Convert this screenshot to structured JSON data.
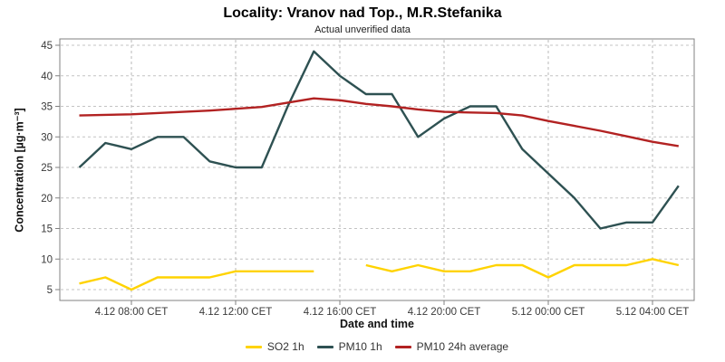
{
  "title": "Locality: Vranov nad Top., M.R.Stefanika",
  "subtitle": "Actual unverified data",
  "chart_data": {
    "type": "line",
    "title": "Locality: Vranov nad Top., M.R.Stefanika",
    "subtitle": "Actual unverified data",
    "xlabel": "Date and time",
    "ylabel": "Concentration [µg·m⁻³]",
    "ylim": [
      3,
      46
    ],
    "yticks": [
      5,
      10,
      15,
      20,
      25,
      30,
      35,
      40,
      45
    ],
    "grid": true,
    "legend_position": "bottom",
    "categories": [
      "4.12 06:00",
      "4.12 07:00",
      "4.12 08:00",
      "4.12 09:00",
      "4.12 10:00",
      "4.12 11:00",
      "4.12 12:00",
      "4.12 13:00",
      "4.12 14:00",
      "4.12 15:00",
      "4.12 16:00",
      "4.12 17:00",
      "4.12 18:00",
      "4.12 19:00",
      "4.12 20:00",
      "4.12 21:00",
      "4.12 22:00",
      "4.12 23:00",
      "5.12 00:00",
      "5.12 01:00",
      "5.12 02:00",
      "5.12 03:00",
      "5.12 04:00",
      "5.12 05:00"
    ],
    "xticks": [
      {
        "index": 2,
        "label": "4.12 08:00 CET"
      },
      {
        "index": 6,
        "label": "4.12 12:00 CET"
      },
      {
        "index": 10,
        "label": "4.12 16:00 CET"
      },
      {
        "index": 14,
        "label": "4.12 20:00 CET"
      },
      {
        "index": 18,
        "label": "5.12 00:00 CET"
      },
      {
        "index": 22,
        "label": "5.12 04:00 CET"
      }
    ],
    "series": [
      {
        "name": "SO2 1h",
        "color": "#FFD300",
        "values": [
          6,
          7,
          5,
          7,
          7,
          7,
          8,
          8,
          8,
          8,
          null,
          9,
          8,
          9,
          8,
          8,
          9,
          9,
          7,
          9,
          9,
          9,
          10,
          9
        ]
      },
      {
        "name": "PM10 1h",
        "color": "#2E5152",
        "values": [
          25,
          29,
          28,
          30,
          30,
          26,
          25,
          25,
          35,
          44,
          40,
          37,
          37,
          30,
          33,
          35,
          35,
          28,
          24,
          20,
          15,
          16,
          16,
          22
        ]
      },
      {
        "name": "PM10 24h average",
        "color": "#B22222",
        "values": [
          33.5,
          33.6,
          33.7,
          33.9,
          34.1,
          34.3,
          34.6,
          34.9,
          35.6,
          36.3,
          36.0,
          35.4,
          35.0,
          34.5,
          34.1,
          34.0,
          33.9,
          33.5,
          32.6,
          31.8,
          31.0,
          30.1,
          29.2,
          28.5
        ]
      }
    ]
  }
}
